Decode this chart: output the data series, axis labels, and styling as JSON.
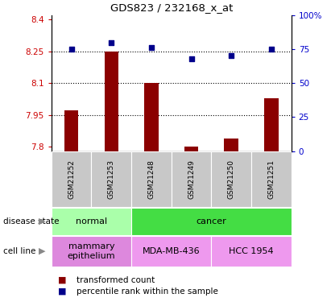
{
  "title": "GDS823 / 232168_x_at",
  "samples": [
    "GSM21252",
    "GSM21253",
    "GSM21248",
    "GSM21249",
    "GSM21250",
    "GSM21251"
  ],
  "bar_values": [
    7.97,
    8.25,
    8.1,
    7.8,
    7.84,
    8.03
  ],
  "percentile_values": [
    75,
    80,
    76,
    68,
    70,
    75
  ],
  "ylim_left": [
    7.78,
    8.42
  ],
  "ylim_right": [
    0,
    100
  ],
  "yticks_left": [
    7.8,
    7.95,
    8.1,
    8.25,
    8.4
  ],
  "yticks_left_labels": [
    "7.8",
    "7.95",
    "8.1",
    "8.25",
    "8.4"
  ],
  "yticks_right": [
    0,
    25,
    50,
    75,
    100
  ],
  "yticks_right_labels": [
    "0",
    "25",
    "50",
    "75",
    "100%"
  ],
  "hlines": [
    7.95,
    8.1,
    8.25
  ],
  "bar_color": "#8B0000",
  "dot_color": "#00008B",
  "bar_width": 0.35,
  "disease_state_groups": [
    {
      "label": "normal",
      "span": [
        0,
        2
      ],
      "color": "#AAFFAA"
    },
    {
      "label": "cancer",
      "span": [
        2,
        6
      ],
      "color": "#44DD44"
    }
  ],
  "cell_line_groups": [
    {
      "label": "mammary\nepithelium",
      "span": [
        0,
        2
      ],
      "color": "#DD88DD"
    },
    {
      "label": "MDA-MB-436",
      "span": [
        2,
        4
      ],
      "color": "#EE99EE"
    },
    {
      "label": "HCC 1954",
      "span": [
        4,
        6
      ],
      "color": "#EE99EE"
    }
  ],
  "disease_label": "disease state",
  "cell_line_label": "cell line",
  "legend_bar_label": "transformed count",
  "legend_dot_label": "percentile rank within the sample",
  "background_color": "#ffffff",
  "tick_area_color": "#C8C8C8"
}
